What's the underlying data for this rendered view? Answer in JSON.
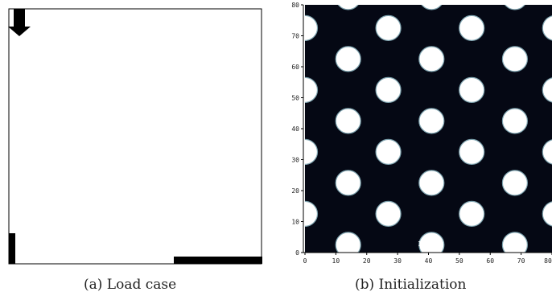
{
  "figure": {
    "panel_a": {
      "caption": "(a) Load case"
    },
    "panel_b": {
      "caption": "(b) Initialization",
      "annotation": "125",
      "x_ticks": [
        "0",
        "10",
        "20",
        "30",
        "40",
        "50",
        "60",
        "70",
        "80"
      ],
      "y_ticks": [
        "0",
        "10",
        "20",
        "30",
        "40",
        "50",
        "60",
        "70",
        "80"
      ],
      "x_range": [
        0,
        80
      ],
      "y_range": [
        0,
        80
      ],
      "colors": {
        "solid": "#050814",
        "void": "#ffffff",
        "edge": "#7fa4b0"
      }
    }
  }
}
